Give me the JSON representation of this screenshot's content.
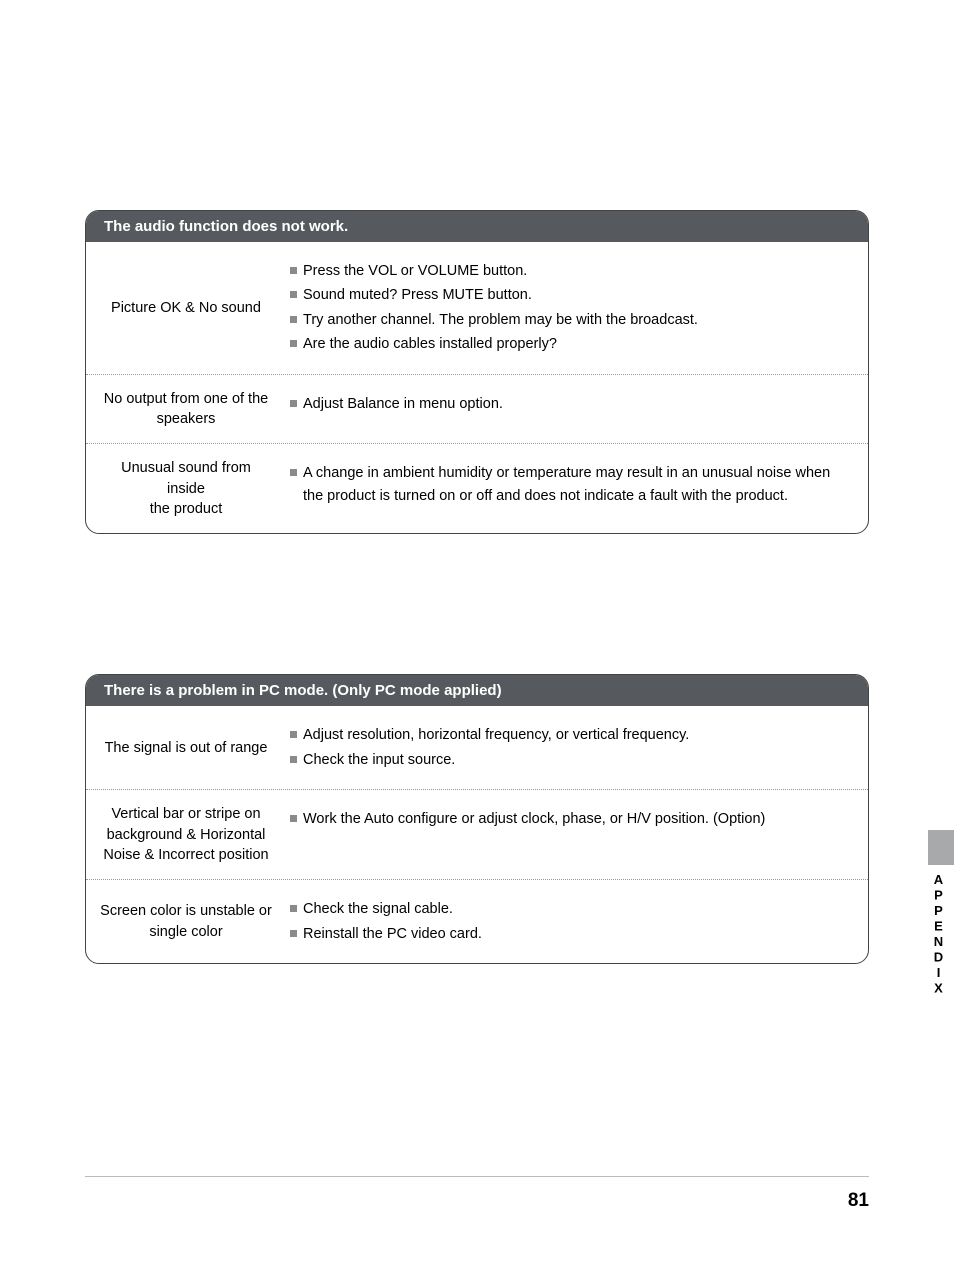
{
  "tables": [
    {
      "header": "The audio function does not work.",
      "rows": [
        {
          "label": "Picture OK & No sound",
          "items": [
            "Press the VOL or VOLUME button.",
            "Sound muted? Press MUTE button.",
            "Try another channel. The problem may be with the broadcast.",
            "Are the audio cables installed properly?"
          ]
        },
        {
          "label": "No output from one of the speakers",
          "items": [
            "Adjust Balance in menu option."
          ]
        },
        {
          "label": "Unusual sound from inside the product",
          "items": [
            "A change in ambient humidity or temperature may result in an unusual noise when the product is turned on or off and does not indicate a fault with the product."
          ]
        }
      ]
    },
    {
      "header": "There is a problem in PC mode. (Only PC mode applied)",
      "rows": [
        {
          "label": "The signal is out of range",
          "items": [
            "Adjust resolution, horizontal frequency, or vertical frequency.",
            "Check the input source."
          ]
        },
        {
          "label": "Vertical bar or stripe on background & Horizontal Noise & Incorrect position",
          "items": [
            "Work the Auto configure or adjust clock, phase, or H/V position. (Option)"
          ]
        },
        {
          "label": "Screen color is unstable or single color",
          "items": [
            "Check the signal cable.",
            "Reinstall the PC video card."
          ]
        }
      ]
    }
  ],
  "sideLabel": "APPENDIX",
  "pageNumber": "81",
  "colors": {
    "headerBg": "#565a5f",
    "headerText": "#ffffff",
    "bulletColor": "#888a8c",
    "sideTabGray": "#a8a9ab"
  }
}
